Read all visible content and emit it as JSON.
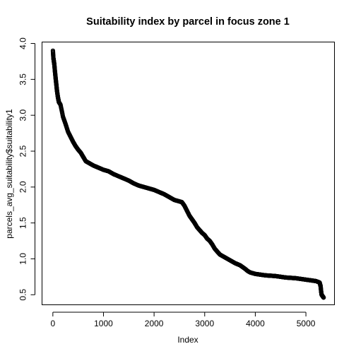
{
  "chart_data": {
    "type": "scatter",
    "title": "Suitability index by parcel in focus zone 1",
    "xlabel": "Index",
    "ylabel": "parcels_avg_suitability$suitability1",
    "xlim": [
      -214,
      5564
    ],
    "ylim": [
      0.36,
      4.02
    ],
    "x_ticks": [
      0,
      1000,
      2000,
      3000,
      4000,
      5000
    ],
    "x_tick_labels": [
      "0",
      "1000",
      "2000",
      "3000",
      "4000",
      "5000"
    ],
    "y_ticks": [
      0.5,
      1.0,
      1.5,
      2.0,
      2.5,
      3.0,
      3.5,
      4.0
    ],
    "y_tick_labels": [
      "0.5",
      "1.0",
      "1.5",
      "2.0",
      "2.5",
      "3.0",
      "3.5",
      "4.0"
    ],
    "grid": false,
    "legend": "none",
    "marker": "open-circle",
    "n_points": 5350,
    "curve_points": [
      [
        1,
        3.9
      ],
      [
        10,
        3.8
      ],
      [
        20,
        3.75
      ],
      [
        30,
        3.7
      ],
      [
        40,
        3.62
      ],
      [
        50,
        3.55
      ],
      [
        60,
        3.48
      ],
      [
        70,
        3.42
      ],
      [
        80,
        3.35
      ],
      [
        100,
        3.25
      ],
      [
        120,
        3.18
      ],
      [
        150,
        3.15
      ],
      [
        180,
        3.05
      ],
      [
        200,
        2.98
      ],
      [
        250,
        2.88
      ],
      [
        300,
        2.77
      ],
      [
        350,
        2.7
      ],
      [
        400,
        2.63
      ],
      [
        450,
        2.57
      ],
      [
        500,
        2.52
      ],
      [
        550,
        2.48
      ],
      [
        600,
        2.42
      ],
      [
        650,
        2.36
      ],
      [
        700,
        2.34
      ],
      [
        800,
        2.3
      ],
      [
        900,
        2.27
      ],
      [
        1000,
        2.24
      ],
      [
        1100,
        2.22
      ],
      [
        1200,
        2.18
      ],
      [
        1300,
        2.15
      ],
      [
        1400,
        2.12
      ],
      [
        1500,
        2.09
      ],
      [
        1600,
        2.05
      ],
      [
        1700,
        2.02
      ],
      [
        1800,
        2.0
      ],
      [
        1900,
        1.98
      ],
      [
        2000,
        1.96
      ],
      [
        2100,
        1.93
      ],
      [
        2200,
        1.9
      ],
      [
        2300,
        1.86
      ],
      [
        2400,
        1.82
      ],
      [
        2500,
        1.8
      ],
      [
        2550,
        1.79
      ],
      [
        2600,
        1.74
      ],
      [
        2650,
        1.67
      ],
      [
        2700,
        1.6
      ],
      [
        2750,
        1.55
      ],
      [
        2800,
        1.5
      ],
      [
        2850,
        1.44
      ],
      [
        2900,
        1.4
      ],
      [
        2950,
        1.36
      ],
      [
        3000,
        1.33
      ],
      [
        3050,
        1.28
      ],
      [
        3100,
        1.25
      ],
      [
        3150,
        1.2
      ],
      [
        3200,
        1.14
      ],
      [
        3250,
        1.1
      ],
      [
        3300,
        1.06
      ],
      [
        3400,
        1.02
      ],
      [
        3500,
        0.98
      ],
      [
        3600,
        0.94
      ],
      [
        3700,
        0.91
      ],
      [
        3800,
        0.86
      ],
      [
        3850,
        0.83
      ],
      [
        3900,
        0.81
      ],
      [
        4000,
        0.79
      ],
      [
        4200,
        0.77
      ],
      [
        4400,
        0.76
      ],
      [
        4600,
        0.74
      ],
      [
        4800,
        0.73
      ],
      [
        5000,
        0.71
      ],
      [
        5200,
        0.69
      ],
      [
        5270,
        0.67
      ],
      [
        5290,
        0.62
      ],
      [
        5300,
        0.55
      ],
      [
        5310,
        0.5
      ],
      [
        5330,
        0.48
      ],
      [
        5350,
        0.46
      ]
    ]
  }
}
